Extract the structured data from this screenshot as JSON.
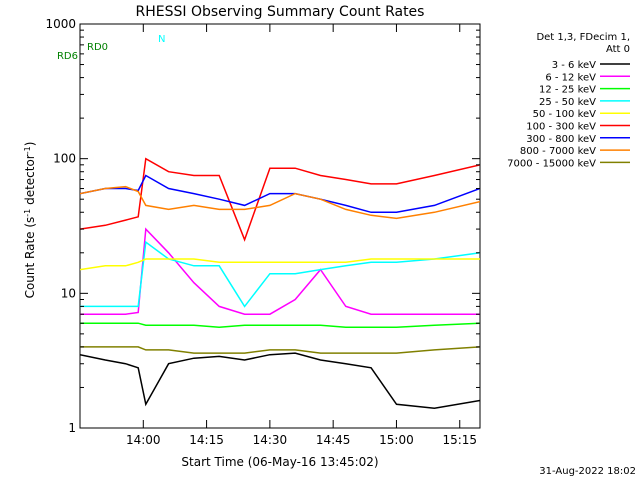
{
  "chart_data": {
    "type": "line",
    "title": "RHESSI Observing Summary Count Rates",
    "xlabel": "Start Time (06-May-16 13:45:02)",
    "ylabel_parts": [
      "Count Rate (s",
      "-1",
      " detector",
      "-1",
      ")"
    ],
    "y_scale": "log",
    "ylim": [
      1,
      1000
    ],
    "y_ticks": [
      {
        "value": 1,
        "label": "1"
      },
      {
        "value": 10,
        "label": "10"
      },
      {
        "value": 100,
        "label": "100"
      },
      {
        "value": 1000,
        "label": "1000"
      }
    ],
    "x_range_minutes": [
      13.75,
      15.33
    ],
    "x_ticks": [
      {
        "value": 14.0,
        "label": "14:00"
      },
      {
        "value": 14.25,
        "label": "14:15"
      },
      {
        "value": 14.5,
        "label": "14:30"
      },
      {
        "value": 14.75,
        "label": "14:45"
      },
      {
        "value": 15.0,
        "label": "15:00"
      },
      {
        "value": 15.25,
        "label": "15:15"
      }
    ],
    "legend_header": [
      "Det 1,3, FDecim 1,",
      "Att 0"
    ],
    "legend_position": "right",
    "series": [
      {
        "name": "3 - 6 keV",
        "color": "#000000",
        "values": [
          3.5,
          3.2,
          3.0,
          2.8,
          1.5,
          3.0,
          3.3,
          3.4,
          3.2,
          3.5,
          3.6,
          3.2,
          3.0,
          2.8,
          1.5,
          1.4,
          1.6
        ]
      },
      {
        "name": "6 - 12 keV",
        "color": "#ff00ff",
        "values": [
          7.0,
          7.0,
          7.0,
          7.2,
          30,
          20,
          12,
          8,
          7,
          7,
          9,
          15,
          8,
          7,
          7,
          7,
          7
        ]
      },
      {
        "name": "12 - 25 keV",
        "color": "#00ff00",
        "values": [
          6.0,
          6.0,
          6.0,
          6.0,
          5.8,
          5.8,
          5.8,
          5.6,
          5.8,
          5.8,
          5.8,
          5.8,
          5.6,
          5.6,
          5.6,
          5.8,
          6.0
        ]
      },
      {
        "name": "25 - 50 keV",
        "color": "#00ffff",
        "values": [
          8,
          8,
          8,
          8,
          24,
          18,
          16,
          16,
          8,
          14,
          14,
          15,
          16,
          17,
          17,
          18,
          20
        ]
      },
      {
        "name": "50 - 100 keV",
        "color": "#ffff00",
        "values": [
          15,
          16,
          16,
          17,
          18,
          18,
          18,
          17,
          17,
          17,
          17,
          17,
          17,
          18,
          18,
          18,
          18
        ]
      },
      {
        "name": "100 - 300 keV",
        "color": "#ff0000",
        "values": [
          30,
          32,
          35,
          37,
          100,
          80,
          75,
          75,
          25,
          85,
          85,
          75,
          70,
          65,
          65,
          75,
          90
        ]
      },
      {
        "name": "300 - 800 keV",
        "color": "#0000ff",
        "values": [
          55,
          60,
          60,
          58,
          75,
          60,
          55,
          50,
          45,
          55,
          55,
          50,
          45,
          40,
          40,
          45,
          60
        ]
      },
      {
        "name": "800 - 7000 keV",
        "color": "#ff8000",
        "values": [
          55,
          60,
          62,
          57,
          45,
          42,
          45,
          42,
          42,
          45,
          55,
          50,
          42,
          38,
          36,
          40,
          48
        ]
      },
      {
        "name": "7000 - 15000 keV",
        "color": "#808000",
        "values": [
          4.0,
          4.0,
          4.0,
          4.0,
          3.8,
          3.8,
          3.6,
          3.6,
          3.6,
          3.8,
          3.8,
          3.6,
          3.6,
          3.6,
          3.6,
          3.8,
          4.0
        ]
      }
    ],
    "x_points_minutes": [
      13.75,
      13.85,
      13.93,
      13.98,
      14.01,
      14.1,
      14.2,
      14.3,
      14.4,
      14.5,
      14.6,
      14.7,
      14.8,
      14.9,
      15.0,
      15.15,
      15.33
    ],
    "flags": [
      {
        "name": "RD0",
        "color": "#00ffff"
      },
      {
        "name": "RD6",
        "color": "#008000"
      },
      {
        "name": "N",
        "color": "#00ffff"
      }
    ],
    "timestamp": "31-Aug-2022 18:02"
  }
}
